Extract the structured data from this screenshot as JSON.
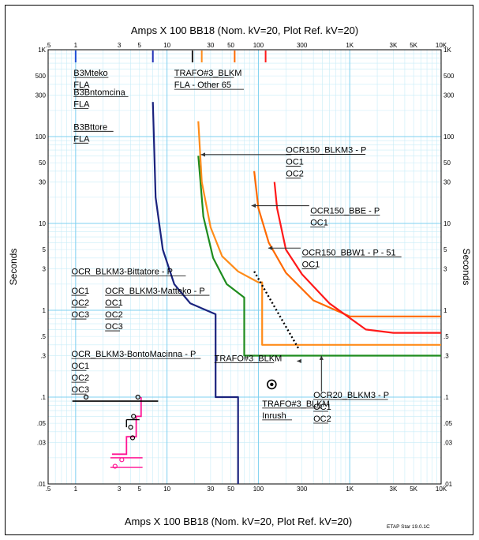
{
  "chart_data": {
    "type": "line",
    "title": "Amps  X  100   BB18 (Nom. kV=20, Plot Ref. kV=20)",
    "xlabel": "Amps  X  100   BB18 (Nom. kV=20, Plot Ref. kV=20)",
    "ylabel": "Seconds",
    "x_scale": "log",
    "y_scale": "log",
    "xlim": [
      0.5,
      10000
    ],
    "ylim": [
      0.01,
      1000
    ],
    "grid": true,
    "x_ticks": [
      {
        "v": 0.5,
        "t": ".5"
      },
      {
        "v": 1,
        "t": "1"
      },
      {
        "v": 3,
        "t": "3"
      },
      {
        "v": 5,
        "t": "5"
      },
      {
        "v": 10,
        "t": "10"
      },
      {
        "v": 30,
        "t": "30"
      },
      {
        "v": 50,
        "t": "50"
      },
      {
        "v": 100,
        "t": "100"
      },
      {
        "v": 300,
        "t": "300"
      },
      {
        "v": 1000,
        "t": "1K"
      },
      {
        "v": 3000,
        "t": "3K"
      },
      {
        "v": 5000,
        "t": "5K"
      },
      {
        "v": 10000,
        "t": "10K"
      }
    ],
    "y_ticks": [
      {
        "v": 0.01,
        "t": ".01"
      },
      {
        "v": 0.03,
        "t": ".03"
      },
      {
        "v": 0.05,
        "t": ".05"
      },
      {
        "v": 0.1,
        "t": ".1"
      },
      {
        "v": 0.3,
        "t": ".3"
      },
      {
        "v": 0.5,
        "t": ".5"
      },
      {
        "v": 1,
        "t": "1"
      },
      {
        "v": 3,
        "t": "3"
      },
      {
        "v": 5,
        "t": "5"
      },
      {
        "v": 10,
        "t": "10"
      },
      {
        "v": 30,
        "t": "30"
      },
      {
        "v": 50,
        "t": "50"
      },
      {
        "v": 100,
        "t": "100"
      },
      {
        "v": 300,
        "t": "300"
      },
      {
        "v": 500,
        "t": "500"
      },
      {
        "v": 1000,
        "t": "1K"
      }
    ],
    "series": [
      {
        "color": "#1a237e",
        "points": [
          [
            7,
            250
          ],
          [
            7.5,
            20
          ],
          [
            9,
            5
          ],
          [
            12,
            2
          ],
          [
            18,
            1.2
          ],
          [
            34,
            0.9
          ],
          [
            34,
            0.1
          ],
          [
            60,
            0.1
          ],
          [
            60,
            0.01
          ]
        ]
      },
      {
        "color": "#1e8c1e",
        "points": [
          [
            22,
            60
          ],
          [
            25,
            12
          ],
          [
            32,
            4
          ],
          [
            45,
            2
          ],
          [
            70,
            1.4
          ],
          [
            70,
            0.3
          ],
          [
            10000,
            0.3
          ]
        ]
      },
      {
        "color": "#ff8c1a",
        "points": [
          [
            22,
            150
          ],
          [
            24,
            30
          ],
          [
            30,
            9
          ],
          [
            40,
            4.2
          ],
          [
            60,
            2.8
          ],
          [
            100,
            2.1
          ],
          [
            110,
            2.1
          ],
          [
            110,
            0.4
          ],
          [
            10000,
            0.4
          ]
        ]
      },
      {
        "color": "#ff6a00",
        "points": [
          [
            90,
            40
          ],
          [
            100,
            15
          ],
          [
            130,
            6
          ],
          [
            200,
            2.7
          ],
          [
            400,
            1.3
          ],
          [
            1000,
            0.85
          ],
          [
            10000,
            0.85
          ]
        ]
      },
      {
        "color": "#ff1a1a",
        "points": [
          [
            150,
            30
          ],
          [
            160,
            15
          ],
          [
            200,
            5
          ],
          [
            300,
            2.6
          ],
          [
            600,
            1.2
          ],
          [
            1500,
            0.6
          ],
          [
            3000,
            0.55
          ],
          [
            10000,
            0.55
          ]
        ]
      }
    ],
    "step_series": [
      {
        "color": "#ff1493",
        "points": [
          [
            2.5,
            0.022
          ],
          [
            3.6,
            0.022
          ],
          [
            3.6,
            0.035
          ],
          [
            4.6,
            0.035
          ],
          [
            4.6,
            0.06
          ],
          [
            5.2,
            0.06
          ],
          [
            5.2,
            0.1
          ]
        ]
      }
    ],
    "ticks_top": [
      {
        "x": 1,
        "color": "#1f4fd6"
      },
      {
        "x": 7,
        "color": "#1f2fb5"
      },
      {
        "x": 19,
        "color": "#222222"
      },
      {
        "x": 24,
        "color": "#ff8c1a"
      },
      {
        "x": 55,
        "color": "#ff6a00"
      },
      {
        "x": 120,
        "color": "#ff1a1a"
      }
    ],
    "dotted_line": [
      [
        90,
        2.8
      ],
      [
        280,
        0.35
      ]
    ],
    "inrush_marker": [
      140,
      0.14
    ],
    "horizontal_line": [
      [
        0.92,
        0.09
      ],
      [
        8,
        0.09
      ]
    ],
    "labels": [
      {
        "id": "b3mteko",
        "lines": [
          "B3Mteko",
          "FLA"
        ],
        "x": 0.95,
        "y": 500
      },
      {
        "id": "b3bntomcina",
        "lines": [
          "B3Bntomcina",
          "FLA"
        ],
        "x": 0.95,
        "y": 300
      },
      {
        "id": "b3bttore",
        "lines": [
          "B3Bttore",
          "FLA"
        ],
        "x": 0.95,
        "y": 120
      },
      {
        "id": "trafo-fla",
        "lines": [
          "TRAFO#3_BLKM",
          "FLA - Other 65"
        ],
        "x": 12,
        "y": 500
      },
      {
        "id": "ocr150-blkm3",
        "lines": [
          "OCR150_BLKM3 - P",
          "OC1",
          "OC2"
        ],
        "x": 200,
        "y": 65
      },
      {
        "id": "ocr150-bbe",
        "lines": [
          "OCR150_BBE - P",
          "OC1"
        ],
        "x": 370,
        "y": 13
      },
      {
        "id": "ocr150-bbw1",
        "lines": [
          "OCR150_BBW1 - P - 51",
          "OC1"
        ],
        "x": 300,
        "y": 4.3
      },
      {
        "id": "ocr-blkm3-bittatore",
        "lines": [
          "OCR_BLKM3-Bittatore - P"
        ],
        "x": 0.9,
        "y": 2.6
      },
      {
        "id": "ocr-blkm3-matteko",
        "lines": [
          "OCR_BLKM3-Matteko - P",
          "OC1",
          "OC2",
          "OC3"
        ],
        "x": 2.1,
        "y": 1.55
      },
      {
        "id": "bittatore-ocs",
        "lines": [
          "OC1",
          "OC2",
          "OC3"
        ],
        "x": 0.9,
        "y": 1.55
      },
      {
        "id": "ocr-blkm3-bontomacinna",
        "lines": [
          "OCR_BLKM3-BontoMacinna - P",
          "OC1",
          "OC2",
          "OC3"
        ],
        "x": 0.9,
        "y": 0.29
      },
      {
        "id": "trafo3-blkm",
        "lines": [
          "TRAFO#3_BLKM"
        ],
        "x": 33,
        "y": 0.26
      },
      {
        "id": "trafo3-inrush",
        "lines": [
          "TRAFO#3_BLKM",
          "Inrush"
        ],
        "x": 110,
        "y": 0.078
      },
      {
        "id": "ocr20-blkm3",
        "lines": [
          "OCR20_BLKM3 - P",
          "OC1",
          "OC2"
        ],
        "x": 400,
        "y": 0.098
      }
    ],
    "arrows": [
      {
        "from": [
          230,
          62
        ],
        "to": [
          23.5,
          62
        ]
      },
      {
        "from": [
          360,
          16
        ],
        "to": [
          84,
          16
        ]
      },
      {
        "from": [
          290,
          5.2
        ],
        "to": [
          128,
          5.2
        ]
      },
      {
        "from": [
          290,
          0.26
        ],
        "to": [
          265,
          0.26
        ]
      },
      {
        "from": [
          490,
          0.115
        ],
        "to": [
          490,
          0.3
        ]
      }
    ],
    "watermark": "ETAP Star 19.0.1C"
  }
}
